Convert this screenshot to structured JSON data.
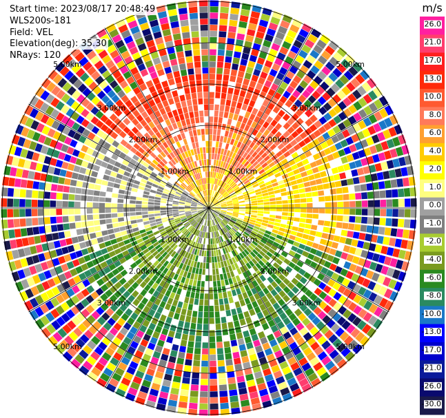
{
  "header": {
    "start_time": "Start time: 2023/08/17 20:48:49",
    "instrument": "WLS200s-181",
    "field": "Field: VEL",
    "elevation": "Elevation(deg): 35.30",
    "nrays": "NRays: 120"
  },
  "chart_data": {
    "type": "heatmap",
    "projection": "polar-ppi",
    "nrays": 120,
    "elevation_deg": 35.3,
    "field": "VEL",
    "range_rings_km": [
      0.5,
      1.0,
      2.0,
      3.0,
      5.0
    ],
    "ring_labels": [
      "1.00km",
      "2.00km",
      "3.00km",
      "5.00km"
    ],
    "colorbar": {
      "unit": "m/s",
      "ticks": [
        "26.0",
        "21.0",
        "17.0",
        "13.0",
        "10.0",
        "8.0",
        "6.0",
        "4.0",
        "2.0",
        "1.0",
        "0.0",
        "-1.0",
        "-2.0",
        "-4.0",
        "-6.0",
        "-8.0",
        "-10.0",
        "-13.0",
        "-17.0",
        "-21.0",
        "-26.0",
        "-30.0"
      ],
      "colors": [
        "#ff1fa0",
        "#ff3d6e",
        "#ff1f1f",
        "#ff2a0a",
        "#ff5a30",
        "#ff7a5a",
        "#ffa030",
        "#ffcc00",
        "#ffff00",
        "#ffff80",
        "#a0a0a0",
        "#808080",
        "#a8cc30",
        "#7a9a20",
        "#2a8a20",
        "#2a8a60",
        "#1a78c8",
        "#0000ff",
        "#0000cc",
        "#0a1a9a",
        "#0a0a6e",
        "#1a1a4a"
      ]
    },
    "sectors": [
      {
        "azimuth_from_deg": -60,
        "azimuth_to_deg": 60,
        "dominant": "positive (warm colors, 2–17 m/s)"
      },
      {
        "azimuth_from_deg": 120,
        "azimuth_to_deg": 240,
        "dominant": "negative (greens, -2 to -10 m/s)"
      },
      {
        "azimuth_from_deg": 240,
        "azimuth_to_deg": 300,
        "dominant": "near zero (grey/olive)"
      },
      {
        "outer_ring": true,
        "dominant": "noise (random colors)"
      }
    ]
  }
}
